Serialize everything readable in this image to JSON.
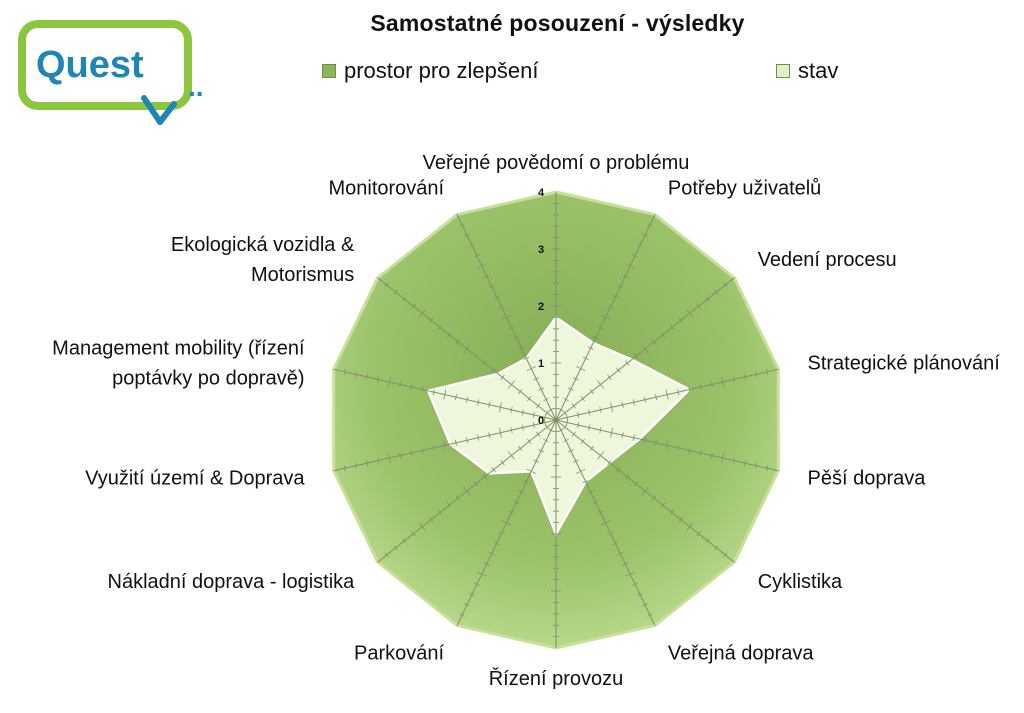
{
  "logo": {
    "text": "Quest",
    "dots": ".."
  },
  "colors": {
    "potential_fill": "#9ec36a",
    "potential_edge": "#c8e09a",
    "state_fill": "#eef6dc",
    "state_edge": "#ffffff",
    "grid": "#7f8f6a",
    "logo_blue": "#1f84b6",
    "logo_green": "#8cc63f"
  },
  "chart_data": {
    "type": "radar",
    "title": "Samostatné posouzení - výsledky",
    "legend_position": "top",
    "categories": [
      "Veřejné povědomí o problému",
      "Potřeby uživatelů",
      "Vedení procesu",
      "Strategické plánování",
      "Pěší doprava",
      "Cyklistika",
      "Veřejná doprava",
      "Řízení provozu",
      "Parkování",
      "Nákladní doprava - logistika",
      "Využití území & Doprava",
      "Management mobility (řízení poptávky po dopravě)",
      "Ekologická vozidla & Motorismus",
      "Monitorování"
    ],
    "category_lines": [
      [
        "Veřejné povědomí o problému"
      ],
      [
        "Potřeby uživatelů"
      ],
      [
        "Vedení procesu"
      ],
      [
        "Strategické plánování"
      ],
      [
        "Pěší doprava"
      ],
      [
        "Cyklistika"
      ],
      [
        "Veřejná doprava"
      ],
      [
        "Řízení provozu"
      ],
      [
        "Parkování"
      ],
      [
        "Nákladní doprava - logistika"
      ],
      [
        "Využití území & Doprava"
      ],
      [
        "Management mobility (řízení",
        "poptávky po dopravě)"
      ],
      [
        "Ekologická vozidla &",
        "Motorismus"
      ],
      [
        "Monitorování"
      ]
    ],
    "rlim": [
      0,
      4
    ],
    "ticks": [
      "0",
      "1",
      "2",
      "3",
      "4"
    ],
    "series": [
      {
        "name": "prostor pro zlepšení",
        "values": [
          4,
          4,
          4,
          4,
          4,
          4,
          4,
          4,
          4,
          4,
          4,
          4,
          4,
          4
        ]
      },
      {
        "name": "stav",
        "values": [
          1.8,
          1.5,
          1.7,
          2.4,
          1.5,
          1.2,
          1.2,
          2.0,
          1.0,
          1.5,
          1.9,
          2.3,
          1.3,
          1.2
        ]
      }
    ]
  }
}
